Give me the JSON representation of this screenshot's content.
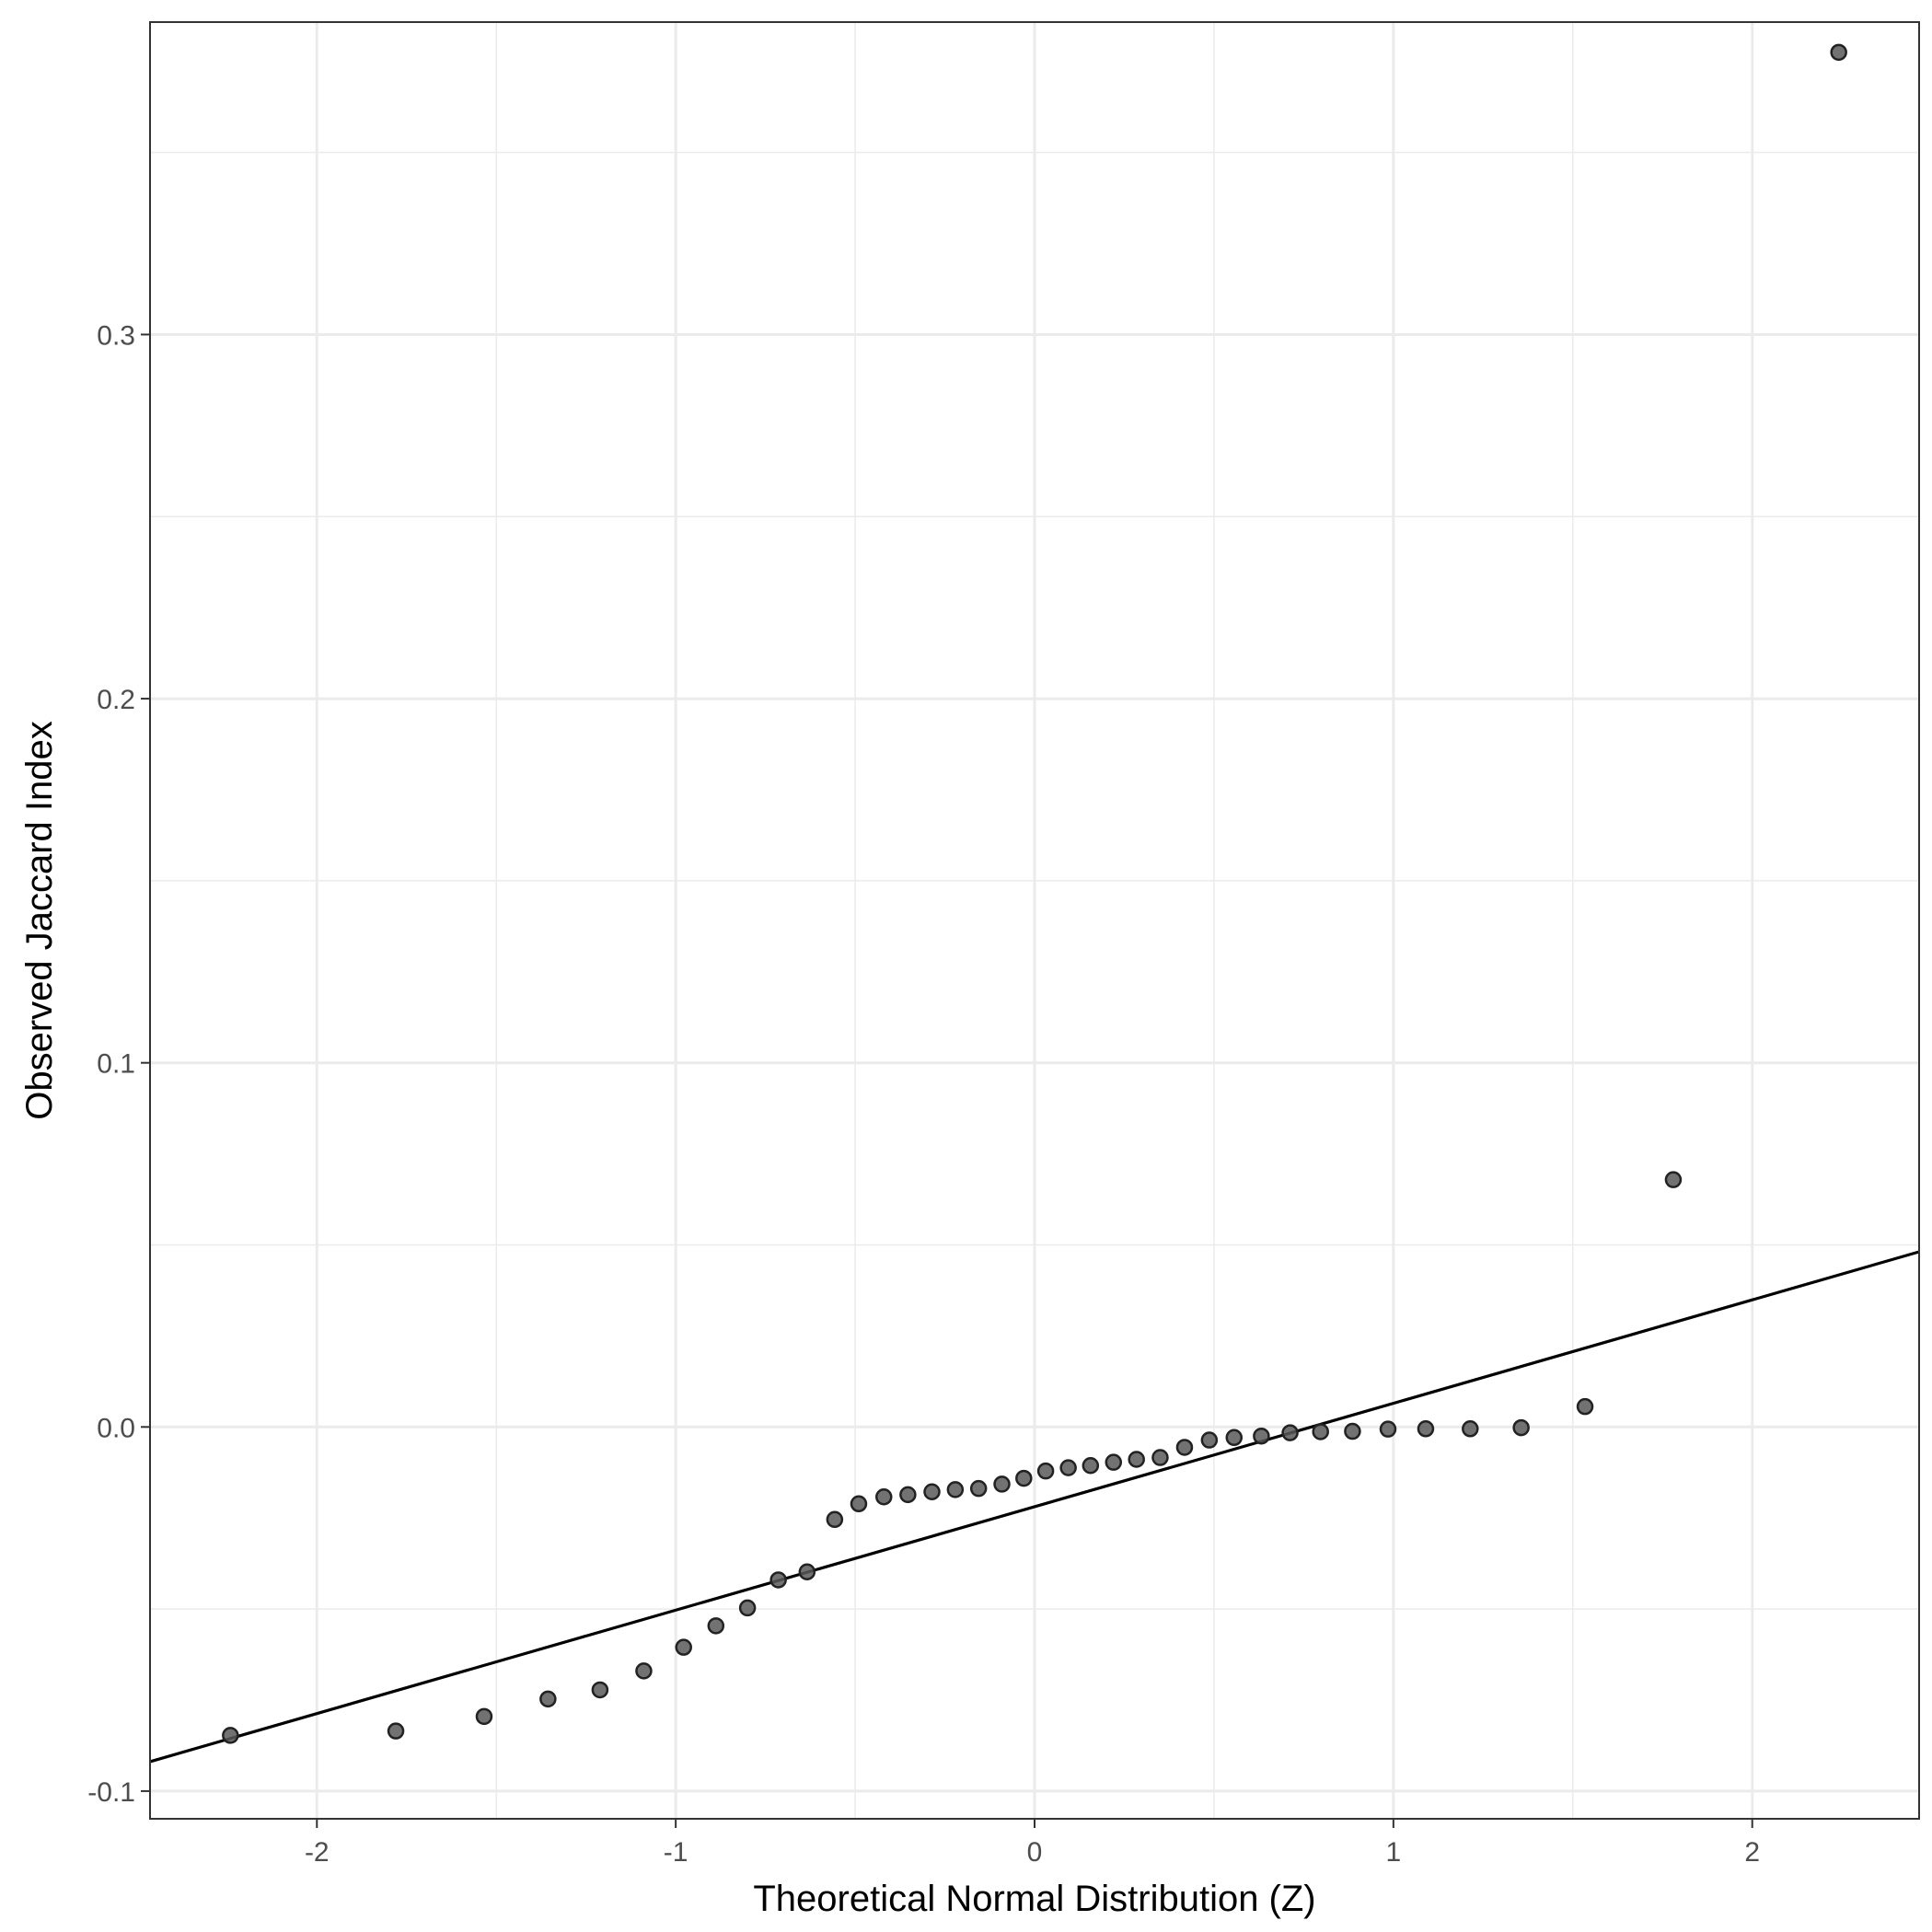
{
  "chart_data": {
    "type": "scatter",
    "title": "",
    "xlabel": "Theoretical Normal Distribution (Z)",
    "ylabel": "Observed Jaccard Index",
    "xlim": [
      -2.465,
      2.465
    ],
    "ylim": [
      -0.1076,
      0.3858
    ],
    "x_ticks": [
      -2,
      -1,
      0,
      1,
      2
    ],
    "x_tick_labels": [
      "-2",
      "-1",
      "0",
      "1",
      "2"
    ],
    "y_ticks": [
      -0.1,
      0.0,
      0.1,
      0.2,
      0.3
    ],
    "y_tick_labels": [
      "-0.1",
      "0.0",
      "0.1",
      "0.2",
      "0.3"
    ],
    "grid": true,
    "legend": "none",
    "point_color": "#595959",
    "line_color": "#000000",
    "reference_line": {
      "intercept": -0.0219,
      "slope": 0.0284
    },
    "points": [
      {
        "x": -2.241,
        "y": -0.0847
      },
      {
        "x": -1.78,
        "y": -0.0835
      },
      {
        "x": -1.534,
        "y": -0.0795
      },
      {
        "x": -1.356,
        "y": -0.0747
      },
      {
        "x": -1.211,
        "y": -0.0722
      },
      {
        "x": -1.089,
        "y": -0.067
      },
      {
        "x": -0.978,
        "y": -0.0605
      },
      {
        "x": -0.888,
        "y": -0.0546
      },
      {
        "x": -0.8,
        "y": -0.0497
      },
      {
        "x": -0.714,
        "y": -0.042
      },
      {
        "x": -0.634,
        "y": -0.0398
      },
      {
        "x": -0.557,
        "y": -0.0254
      },
      {
        "x": -0.49,
        "y": -0.0211
      },
      {
        "x": -0.42,
        "y": -0.0192
      },
      {
        "x": -0.353,
        "y": -0.0186
      },
      {
        "x": -0.286,
        "y": -0.0178
      },
      {
        "x": -0.221,
        "y": -0.0172
      },
      {
        "x": -0.156,
        "y": -0.0169
      },
      {
        "x": -0.091,
        "y": -0.0157
      },
      {
        "x": -0.03,
        "y": -0.0141
      },
      {
        "x": 0.031,
        "y": -0.0121
      },
      {
        "x": 0.094,
        "y": -0.0112
      },
      {
        "x": 0.156,
        "y": -0.0106
      },
      {
        "x": 0.22,
        "y": -0.0097
      },
      {
        "x": 0.284,
        "y": -0.0089
      },
      {
        "x": 0.35,
        "y": -0.0084
      },
      {
        "x": 0.418,
        "y": -0.0056
      },
      {
        "x": 0.487,
        "y": -0.0036
      },
      {
        "x": 0.556,
        "y": -0.0029
      },
      {
        "x": 0.632,
        "y": -0.0025
      },
      {
        "x": 0.712,
        "y": -0.0016
      },
      {
        "x": 0.797,
        "y": -0.0013
      },
      {
        "x": 0.886,
        "y": -0.0012
      },
      {
        "x": 0.985,
        "y": -0.0006
      },
      {
        "x": 1.09,
        "y": -0.0005
      },
      {
        "x": 1.214,
        "y": -0.0005
      },
      {
        "x": 1.356,
        "y": -0.0002
      },
      {
        "x": 1.534,
        "y": 0.0056
      },
      {
        "x": 1.78,
        "y": 0.0679
      },
      {
        "x": 2.241,
        "y": 0.3775
      }
    ]
  }
}
